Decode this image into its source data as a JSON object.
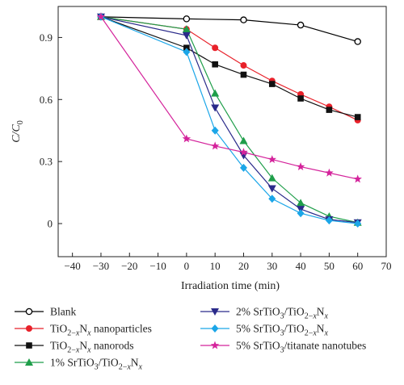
{
  "chart_data": {
    "type": "line",
    "xlabel": "Irradiation time (min)",
    "ylabel": "C/C0",
    "xlim": [
      -45,
      70
    ],
    "ylim": [
      -0.16,
      1.05
    ],
    "xticks": [
      -40,
      -30,
      -20,
      -10,
      0,
      10,
      20,
      30,
      40,
      50,
      60,
      70
    ],
    "yticks": [
      0,
      0.3,
      0.6,
      0.9
    ],
    "grid": false,
    "legend": "bottom",
    "series": [
      {
        "name": "Blank",
        "marker": "open-circle",
        "color": "#000000",
        "x": [
          -30,
          0,
          20,
          40,
          60
        ],
        "y": [
          1.0,
          0.99,
          0.985,
          0.96,
          0.88
        ]
      },
      {
        "name": "TiO2−xNx nanoparticles",
        "marker": "circle",
        "color": "#e8212a",
        "x": [
          -30,
          0,
          10,
          20,
          30,
          40,
          50,
          60
        ],
        "y": [
          1.0,
          0.94,
          0.85,
          0.765,
          0.69,
          0.625,
          0.565,
          0.5
        ]
      },
      {
        "name": "TiO2−xNx nanorods",
        "marker": "square",
        "color": "#111111",
        "x": [
          -30,
          0,
          10,
          20,
          30,
          40,
          50,
          60
        ],
        "y": [
          1.0,
          0.85,
          0.77,
          0.72,
          0.675,
          0.605,
          0.55,
          0.515
        ]
      },
      {
        "name": "1% SrTiO3/TiO2−xNx",
        "marker": "triangle",
        "color": "#1f9e4a",
        "x": [
          -30,
          0,
          10,
          20,
          30,
          40,
          50,
          60
        ],
        "y": [
          1.0,
          0.94,
          0.63,
          0.4,
          0.22,
          0.1,
          0.035,
          0.005
        ]
      },
      {
        "name": "2% SrTiO3/TiO2−xNx",
        "marker": "triangle-down",
        "color": "#2a2a8a",
        "x": [
          -30,
          0,
          10,
          20,
          30,
          40,
          50,
          60
        ],
        "y": [
          1.0,
          0.91,
          0.56,
          0.33,
          0.17,
          0.07,
          0.02,
          0.005
        ]
      },
      {
        "name": "5% SrTiO3/TiO2−xNx",
        "marker": "diamond",
        "color": "#1ba6e8",
        "x": [
          -30,
          0,
          10,
          20,
          30,
          40,
          50,
          60
        ],
        "y": [
          1.0,
          0.83,
          0.45,
          0.27,
          0.12,
          0.05,
          0.015,
          0.0
        ]
      },
      {
        "name": "5% SrTiO3/titanate nanotubes",
        "marker": "star",
        "color": "#d4239b",
        "x": [
          -30,
          0,
          10,
          20,
          30,
          40,
          50,
          60
        ],
        "y": [
          1.0,
          0.41,
          0.375,
          0.345,
          0.31,
          0.275,
          0.245,
          0.215
        ]
      }
    ]
  }
}
